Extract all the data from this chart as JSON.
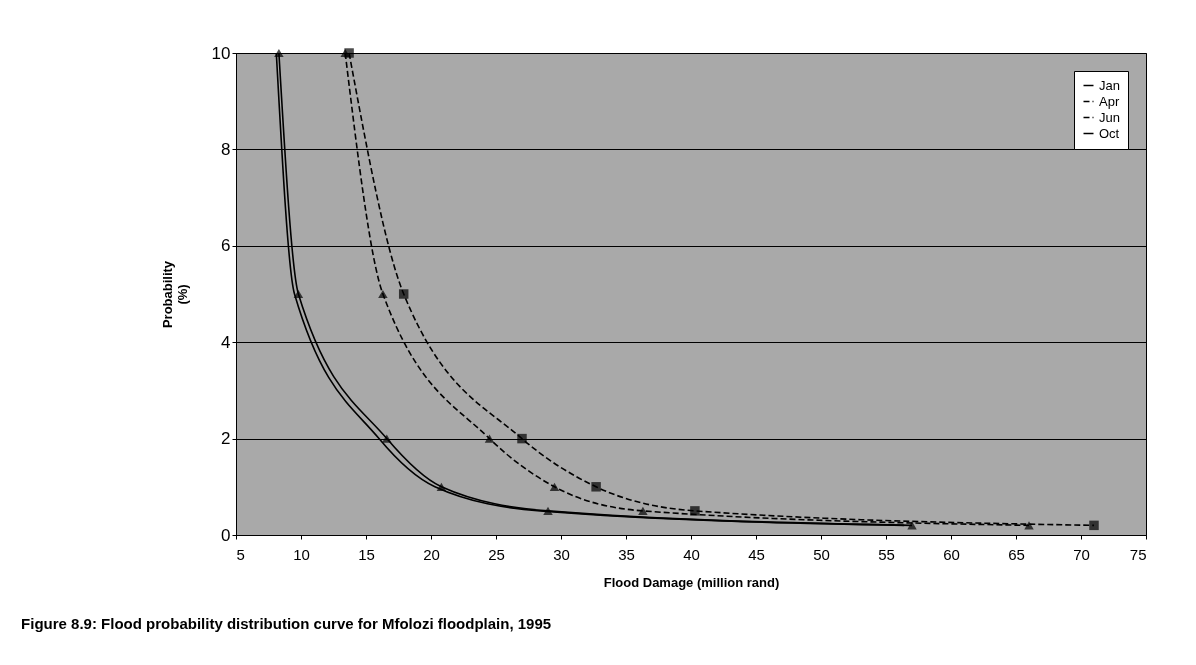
{
  "chart_data": {
    "type": "line",
    "title": "Figure 8.9:     Flood probability distribution curve for Mfolozi floodplain, 1995",
    "xlabel": "Flood Damage (million rand)",
    "ylabel": "Probability (%)",
    "xlim": [
      5,
      75
    ],
    "xticks": [
      5,
      10,
      15,
      20,
      25,
      30,
      35,
      40,
      45,
      50,
      55,
      60,
      65,
      70,
      75
    ],
    "ylim": [
      0,
      10
    ],
    "yticks": [
      0,
      2,
      4,
      6,
      8,
      10
    ],
    "grid": "y",
    "legend": "top right",
    "series": [
      {
        "name": "Jan",
        "color": "#000000",
        "line_style": "solid",
        "marker": "none",
        "x": [
          8.1,
          9.5,
          16,
          20.3,
          28.4,
          56.4
        ],
        "values": [
          10,
          5,
          2,
          1,
          0.5,
          0.2
        ]
      },
      {
        "name": "Apr",
        "color": "#000000",
        "line_style": "dashed",
        "marker": "square",
        "x": [
          13.7,
          17.9,
          27,
          32.7,
          40.3,
          71
        ],
        "values": [
          10,
          5,
          2,
          1,
          0.5,
          0.2
        ]
      },
      {
        "name": "Jun",
        "color": "#000000",
        "line_style": "dashed",
        "marker": "triangle",
        "x": [
          13.4,
          16.3,
          24.5,
          29.5,
          36.3,
          66
        ],
        "values": [
          10,
          5,
          2,
          1,
          0.5,
          0.2
        ]
      },
      {
        "name": "Oct",
        "color": "#000000",
        "line_style": "solid",
        "marker": "triangle",
        "x": [
          8.3,
          9.8,
          16.6,
          20.8,
          29,
          57
        ],
        "values": [
          10,
          5,
          2,
          1,
          0.5,
          0.2
        ]
      }
    ]
  }
}
